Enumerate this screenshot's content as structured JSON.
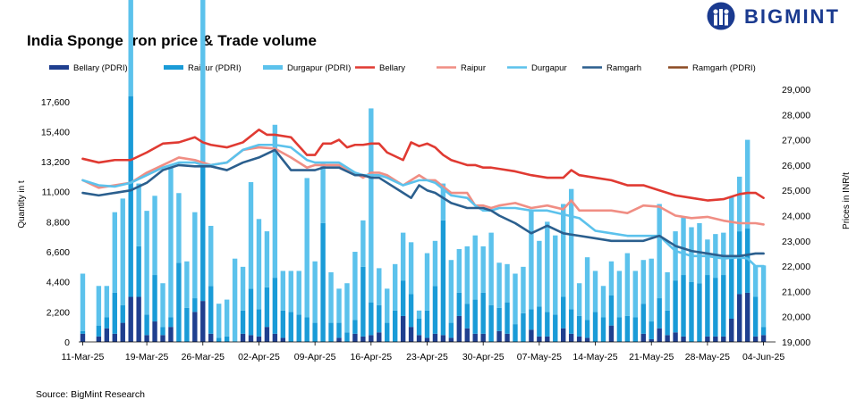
{
  "brand": {
    "name": "BIGMINT"
  },
  "source": "Source: BigMint Research",
  "chart_data": {
    "type": "bar",
    "title": "India Sponge iron price & Trade volume",
    "y_left": {
      "label": "Quantity in t",
      "range": [
        0,
        18500
      ],
      "ticks": [
        0,
        2200,
        4400,
        6600,
        8800,
        11000,
        13200,
        15400,
        17600
      ],
      "tick_labels": [
        "0",
        "2,200",
        "4,400",
        "6,600",
        "8,800",
        "11,000",
        "13,200",
        "15,400",
        "17,600"
      ]
    },
    "y_right": {
      "label": "Prices in INR/t",
      "range": [
        19000,
        29000
      ],
      "ticks": [
        19000,
        20000,
        21000,
        22000,
        23000,
        24000,
        25000,
        26000,
        27000,
        28000,
        29000
      ],
      "tick_labels": [
        "19,000",
        "20,000",
        "21,000",
        "22,000",
        "23,000",
        "24,000",
        "25,000",
        "26,000",
        "27,000",
        "28,000",
        "29,000"
      ]
    },
    "x_tick_labels": [
      "11-Mar-25",
      "19-Mar-25",
      "26-Mar-25",
      "02-Apr-25",
      "09-Apr-25",
      "16-Apr-25",
      "23-Apr-25",
      "30-Apr-25",
      "07-May-25",
      "14-May-25",
      "21-May-25",
      "28-May-25",
      "04-Jun-25"
    ],
    "x_tick_days": [
      0,
      8,
      15,
      22,
      29,
      36,
      43,
      50,
      57,
      64,
      71,
      78,
      85
    ],
    "grid": false,
    "legend_position": "top",
    "colors": {
      "Bellary (PDRI)": "#1f3f8f",
      "Raipur (PDRI)": "#1a9bd7",
      "Durgapur (PDRI)": "#5cc2ec",
      "Bellary": "#e03a32",
      "Raipur": "#f08e84",
      "Durgapur": "#5cc2ec",
      "Ramgarh": "#2b5f8e",
      "Ramgarh (PDRI)": "#8b4a22"
    },
    "bar_series": [
      {
        "name": "Bellary (PDRI)",
        "days": [
          0,
          2,
          3,
          4,
          5,
          6,
          7,
          8,
          9,
          10,
          11,
          12,
          13,
          14,
          15,
          16,
          17,
          18,
          19,
          20,
          21,
          22,
          23,
          24,
          25,
          26,
          27,
          28,
          29,
          30,
          31,
          32,
          33,
          34,
          35,
          36,
          37,
          38,
          39,
          40,
          41,
          42,
          43,
          44,
          45,
          46,
          47,
          48,
          49,
          50,
          51,
          52,
          53,
          54,
          55,
          56,
          57,
          58,
          59,
          60,
          61,
          62,
          63,
          64,
          65,
          66,
          67,
          68,
          69,
          70,
          71,
          72,
          73,
          74,
          75,
          76,
          77,
          78,
          79,
          80,
          81,
          82,
          83,
          84,
          85
        ],
        "values": [
          600,
          400,
          1000,
          600,
          1400,
          3300,
          3300,
          500,
          1500,
          500,
          1100,
          0,
          0,
          2200,
          3000,
          600,
          0,
          0,
          0,
          600,
          500,
          400,
          1100,
          600,
          300,
          0,
          0,
          0,
          0,
          0,
          0,
          300,
          0,
          600,
          400,
          500,
          700,
          0,
          0,
          1900,
          1100,
          500,
          300,
          600,
          500,
          300,
          1900,
          1000,
          600,
          600,
          0,
          800,
          600,
          0,
          0,
          900,
          400,
          400,
          0,
          1000,
          600,
          400,
          300,
          0,
          0,
          1200,
          0,
          0,
          0,
          600,
          200,
          1000,
          500,
          700,
          400,
          0,
          0,
          400,
          400,
          400,
          1700,
          3500,
          3600,
          400,
          500
        ]
      },
      {
        "name": "Raipur (PDRI)",
        "days": [
          0,
          2,
          3,
          4,
          5,
          6,
          7,
          8,
          9,
          10,
          11,
          12,
          13,
          14,
          15,
          16,
          17,
          18,
          19,
          20,
          21,
          22,
          23,
          24,
          25,
          26,
          27,
          28,
          29,
          30,
          31,
          32,
          33,
          34,
          35,
          36,
          37,
          38,
          39,
          40,
          41,
          42,
          43,
          44,
          45,
          46,
          47,
          48,
          49,
          50,
          51,
          52,
          53,
          54,
          55,
          56,
          57,
          58,
          59,
          60,
          61,
          62,
          63,
          64,
          65,
          66,
          67,
          68,
          69,
          70,
          71,
          72,
          73,
          74,
          75,
          76,
          77,
          78,
          79,
          80,
          81,
          82,
          83,
          84,
          85
        ],
        "values": [
          200,
          800,
          800,
          3000,
          1300,
          14700,
          3700,
          1500,
          3400,
          600,
          700,
          5800,
          2500,
          1000,
          10200,
          3500,
          300,
          400,
          0,
          1700,
          3400,
          2000,
          2900,
          4100,
          2000,
          2200,
          2000,
          1800,
          1400,
          8700,
          1400,
          1100,
          700,
          1000,
          5100,
          2400,
          2000,
          1400,
          2300,
          2600,
          2400,
          1200,
          2000,
          3500,
          8400,
          1100,
          1700,
          1800,
          2500,
          3000,
          2700,
          1700,
          2300,
          1300,
          2100,
          1500,
          2200,
          1800,
          2000,
          2300,
          1800,
          1500,
          1300,
          2200,
          1800,
          2200,
          1800,
          1900,
          1800,
          2200,
          1300,
          2200,
          1800,
          3800,
          4500,
          4400,
          4300,
          4500,
          4300,
          4500,
          4500,
          4600,
          4700,
          2900,
          600
        ]
      },
      {
        "name": "Durgapur (PDRI)",
        "days": [
          0,
          2,
          3,
          4,
          5,
          6,
          7,
          8,
          9,
          10,
          11,
          12,
          13,
          14,
          15,
          16,
          17,
          18,
          19,
          20,
          21,
          22,
          23,
          24,
          25,
          26,
          27,
          28,
          29,
          30,
          31,
          32,
          33,
          34,
          35,
          36,
          37,
          38,
          39,
          40,
          41,
          42,
          43,
          44,
          45,
          46,
          47,
          48,
          49,
          50,
          51,
          52,
          53,
          54,
          55,
          56,
          57,
          58,
          59,
          60,
          61,
          62,
          63,
          64,
          65,
          66,
          67,
          68,
          69,
          70,
          71,
          72,
          73,
          74,
          75,
          76,
          77,
          78,
          79,
          80,
          81,
          82,
          83,
          84,
          85
        ],
        "values": [
          4200,
          2900,
          2300,
          5900,
          7800,
          18100,
          4600,
          7600,
          5800,
          3200,
          11000,
          5100,
          3400,
          6300,
          16000,
          4400,
          2500,
          2700,
          6100,
          3200,
          7800,
          6600,
          4100,
          11200,
          2900,
          3000,
          3200,
          10200,
          4500,
          4400,
          3700,
          2500,
          3600,
          5000,
          3400,
          14200,
          2700,
          2500,
          3400,
          3500,
          3800,
          600,
          4200,
          3300,
          2700,
          4600,
          3200,
          4200,
          4700,
          3400,
          5300,
          3300,
          2800,
          3700,
          3400,
          7300,
          4800,
          6600,
          5800,
          6800,
          8800,
          2400,
          4600,
          3000,
          2300,
          2500,
          3400,
          4600,
          3400,
          3200,
          4600,
          6900,
          2800,
          3600,
          4200,
          4000,
          4400,
          2600,
          3200,
          3100,
          4400,
          4000,
          6500,
          2300,
          4500
        ]
      }
    ],
    "line_series": [
      {
        "name": "Bellary",
        "days": [
          0,
          2,
          4,
          6,
          8,
          10,
          12,
          14,
          15,
          16,
          18,
          20,
          22,
          23,
          24,
          26,
          28,
          29,
          30,
          31,
          32,
          33,
          34,
          35,
          36,
          37,
          38,
          40,
          41,
          42,
          43,
          44,
          45,
          46,
          47,
          48,
          49,
          50,
          51,
          52,
          54,
          56,
          58,
          60,
          61,
          62,
          64,
          66,
          68,
          70,
          71,
          72,
          74,
          76,
          78,
          80,
          82,
          83,
          84,
          85
        ],
        "values": [
          26250,
          26100,
          26200,
          26200,
          26500,
          26850,
          26900,
          27100,
          26900,
          26800,
          26700,
          26900,
          27400,
          27200,
          27200,
          27100,
          26400,
          26400,
          26850,
          26850,
          27000,
          26700,
          26800,
          26800,
          26850,
          26850,
          26500,
          26200,
          26900,
          26750,
          26850,
          26700,
          26400,
          26200,
          26100,
          26000,
          26000,
          25900,
          25900,
          25850,
          25750,
          25600,
          25500,
          25500,
          25800,
          25600,
          25500,
          25400,
          25200,
          25200,
          25100,
          25000,
          24800,
          24700,
          24600,
          24650,
          24850,
          24900,
          24900,
          24700
        ]
      },
      {
        "name": "Raipur",
        "days": [
          0,
          2,
          4,
          6,
          8,
          10,
          12,
          14,
          15,
          16,
          18,
          20,
          22,
          24,
          26,
          28,
          29,
          30,
          31,
          32,
          34,
          35,
          36,
          37,
          38,
          40,
          41,
          42,
          43,
          44,
          46,
          48,
          49,
          50,
          51,
          52,
          54,
          56,
          58,
          60,
          61,
          62,
          64,
          66,
          68,
          70,
          72,
          74,
          76,
          78,
          80,
          82,
          84,
          85
        ],
        "values": [
          25400,
          25100,
          25200,
          25300,
          25700,
          26000,
          26300,
          26200,
          26100,
          26000,
          26100,
          26600,
          26700,
          26650,
          26300,
          25900,
          26000,
          26000,
          26000,
          26000,
          25700,
          25500,
          25700,
          25700,
          25600,
          25200,
          25400,
          25600,
          25400,
          25400,
          24900,
          24900,
          24400,
          24400,
          24300,
          24400,
          24500,
          24300,
          24400,
          24250,
          24600,
          24200,
          24200,
          24200,
          24100,
          24400,
          24350,
          24000,
          23900,
          23950,
          23800,
          23700,
          23700,
          23650
        ]
      },
      {
        "name": "Durgapur",
        "days": [
          0,
          2,
          4,
          6,
          8,
          10,
          12,
          14,
          15,
          16,
          18,
          20,
          22,
          24,
          26,
          28,
          29,
          30,
          31,
          32,
          34,
          35,
          36,
          37,
          38,
          40,
          41,
          42,
          43,
          44,
          46,
          48,
          49,
          50,
          51,
          52,
          54,
          56,
          58,
          60,
          62,
          64,
          66,
          68,
          70,
          72,
          74,
          76,
          78,
          80,
          82,
          83,
          84,
          85
        ],
        "values": [
          25400,
          25200,
          25150,
          25300,
          25600,
          25900,
          26100,
          26100,
          26000,
          26000,
          26100,
          26600,
          26800,
          26800,
          26700,
          26200,
          26100,
          26100,
          26100,
          26100,
          25700,
          25600,
          25600,
          25600,
          25500,
          25200,
          25300,
          25400,
          25400,
          25300,
          24800,
          24700,
          24400,
          24200,
          24200,
          24300,
          24300,
          24200,
          24200,
          24050,
          23900,
          23400,
          23300,
          23200,
          23200,
          23200,
          22600,
          22400,
          22400,
          22300,
          22350,
          22300,
          22000,
          22000
        ]
      },
      {
        "name": "Ramgarh",
        "days": [
          0,
          2,
          4,
          6,
          8,
          10,
          12,
          14,
          15,
          16,
          18,
          20,
          22,
          24,
          26,
          28,
          29,
          30,
          31,
          32,
          34,
          35,
          36,
          37,
          38,
          40,
          41,
          42,
          43,
          44,
          46,
          48,
          49,
          50,
          51,
          52,
          54,
          56,
          58,
          60,
          62,
          64,
          66,
          68,
          70,
          72,
          74,
          76,
          78,
          80,
          82,
          84,
          85
        ],
        "values": [
          24900,
          24800,
          24900,
          25000,
          25300,
          25800,
          26000,
          25950,
          25950,
          25950,
          25800,
          26100,
          26300,
          26600,
          25800,
          25800,
          25800,
          25900,
          25900,
          25900,
          25600,
          25600,
          25500,
          25500,
          25300,
          24900,
          24700,
          25200,
          25000,
          24900,
          24500,
          24300,
          24300,
          24300,
          24200,
          24000,
          23700,
          23300,
          23600,
          23300,
          23200,
          23100,
          23000,
          23000,
          23000,
          23200,
          22800,
          22600,
          22500,
          22400,
          22400,
          22500,
          22500
        ]
      },
      {
        "name": "Ramgarh (PDRI)",
        "days": [],
        "values": []
      }
    ],
    "legend": [
      "Bellary (PDRI)",
      "Raipur (PDRI)",
      "Durgapur (PDRI)",
      "Bellary",
      "Raipur",
      "Durgapur",
      "Ramgarh",
      "Ramgarh (PDRI)"
    ]
  }
}
